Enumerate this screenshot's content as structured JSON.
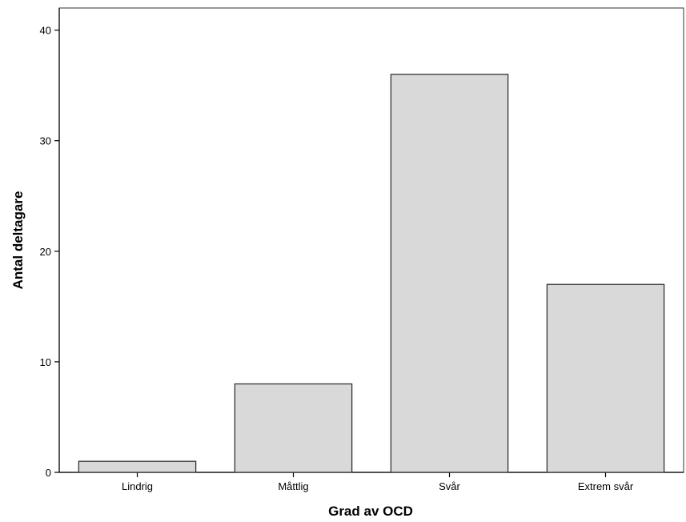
{
  "chart_data": {
    "type": "bar",
    "title": "",
    "xlabel": "Grad av OCD",
    "ylabel": "Antal deltagare",
    "categories": [
      "Lindrig",
      "Måttlig",
      "Svår",
      "Extrem svår"
    ],
    "values": [
      1,
      8,
      36,
      17
    ],
    "ylim": [
      0,
      42
    ],
    "yticks": [
      0,
      10,
      20,
      30,
      40
    ],
    "grid": false,
    "legend": "none",
    "colors": {
      "bar_fill": "#d9d9d9",
      "bar_stroke": "#333333",
      "axis": "#000000"
    }
  }
}
